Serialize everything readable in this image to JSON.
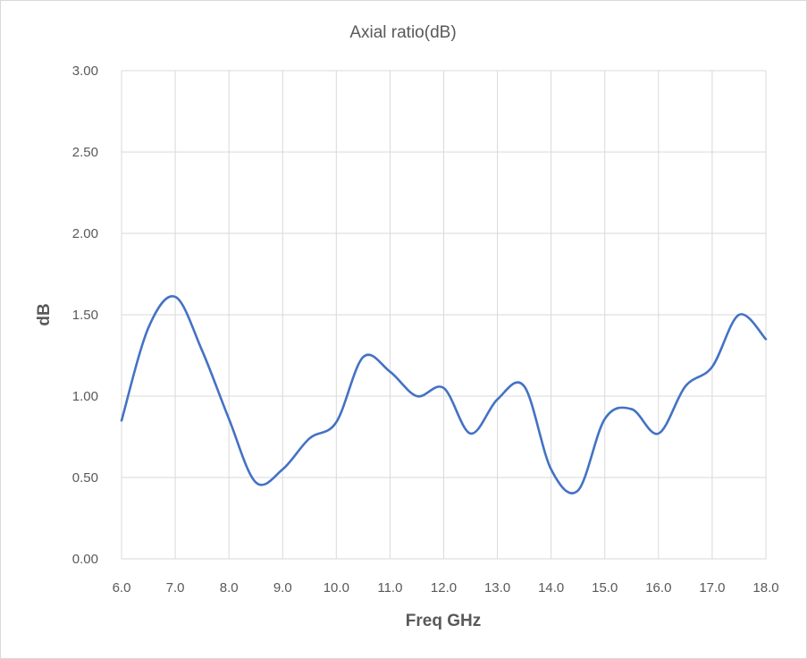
{
  "chart_data": {
    "type": "line",
    "title": "Axial ratio(dB)",
    "xlabel": "Freq GHz",
    "ylabel": "dB",
    "xlim": [
      6.0,
      18.0
    ],
    "ylim": [
      0.0,
      3.0
    ],
    "x_ticks": [
      "6.0",
      "7.0",
      "8.0",
      "9.0",
      "10.0",
      "11.0",
      "12.0",
      "13.0",
      "14.0",
      "15.0",
      "16.0",
      "17.0",
      "18.0"
    ],
    "y_ticks": [
      "0.00",
      "0.50",
      "1.00",
      "1.50",
      "2.00",
      "2.50",
      "3.00"
    ],
    "grid": true,
    "legend": "none",
    "line_color": "#4472c4",
    "grid_color": "#d9d9d9",
    "series": [
      {
        "x": [
          6.0,
          6.5,
          7.0,
          7.5,
          8.0,
          8.5,
          9.0,
          9.5,
          10.0,
          10.5,
          11.0,
          11.5,
          12.0,
          12.5,
          13.0,
          13.5,
          14.0,
          14.5,
          15.0,
          15.5,
          16.0,
          16.5,
          17.0,
          17.5,
          18.0
        ],
        "values": [
          0.85,
          1.42,
          1.61,
          1.28,
          0.86,
          0.47,
          0.55,
          0.74,
          0.84,
          1.24,
          1.15,
          1.0,
          1.05,
          0.77,
          0.98,
          1.06,
          0.55,
          0.42,
          0.86,
          0.92,
          0.77,
          1.06,
          1.18,
          1.5,
          1.35
        ]
      }
    ]
  }
}
